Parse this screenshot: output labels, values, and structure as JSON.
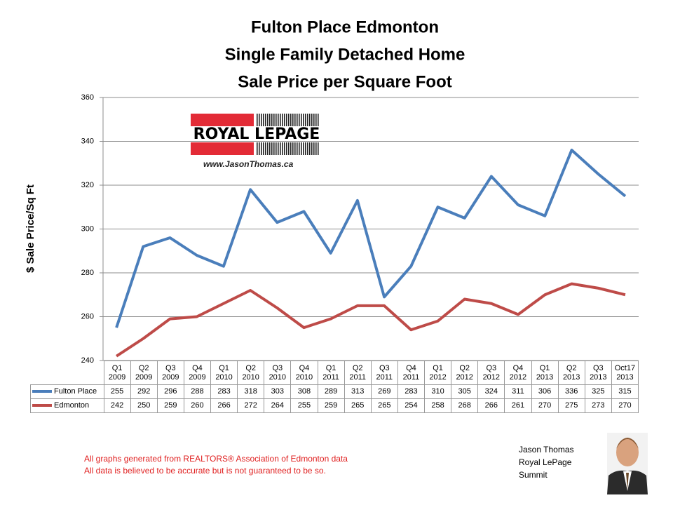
{
  "chart_data": {
    "type": "line",
    "title": [
      "Fulton Place Edmonton",
      "Single Family Detached Home",
      "Sale Price per Square Foot"
    ],
    "y_label": "$ Sale Price/Sq Ft",
    "categories": [
      "Q1 2009",
      "Q2 2009",
      "Q3 2009",
      "Q4 2009",
      "Q1 2010",
      "Q2 2010",
      "Q3 2010",
      "Q4 2010",
      "Q1 2011",
      "Q2 2011",
      "Q3 2011",
      "Q4 2011",
      "Q1 2012",
      "Q2 2012",
      "Q3 2012",
      "Q4 2012",
      "Q1 2013",
      "Q2 2013",
      "Q3 2013",
      "Oct17 2013"
    ],
    "series": [
      {
        "name": "Fulton Place",
        "color": "#4a7ebb",
        "values": [
          255,
          292,
          296,
          288,
          283,
          318,
          303,
          308,
          289,
          313,
          269,
          283,
          310,
          305,
          324,
          311,
          306,
          336,
          325,
          315
        ]
      },
      {
        "name": "Edmonton",
        "color": "#be4b48",
        "values": [
          242,
          250,
          259,
          260,
          266,
          272,
          264,
          255,
          259,
          265,
          265,
          254,
          258,
          268,
          266,
          261,
          270,
          275,
          273,
          270
        ]
      }
    ],
    "ylim": [
      240,
      360
    ],
    "yticks": [
      240,
      260,
      280,
      300,
      320,
      340,
      360
    ],
    "grid": true
  },
  "logo": {
    "brand": "ROYAL LEPAGE",
    "url": "www.JasonThomas.ca"
  },
  "notes": [
    "All graphs generated from REALTORS® Association of Edmonton data",
    "All data is believed to be accurate but is not guaranteed to be so."
  ],
  "signature": [
    "Jason Thomas",
    "Royal LePage",
    "Summit"
  ]
}
